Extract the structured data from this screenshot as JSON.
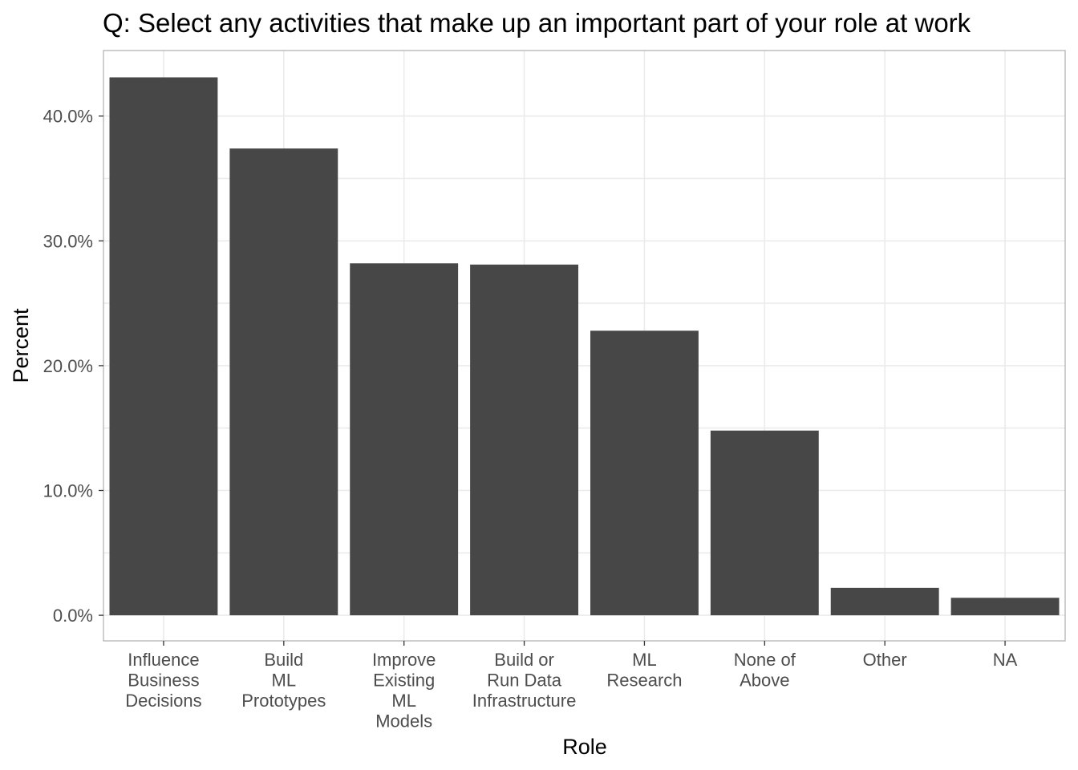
{
  "chart_data": {
    "type": "bar",
    "title": "Q: Select any activities that make up an important part of your role at work",
    "xlabel": "Role",
    "ylabel": "Percent",
    "categories": [
      [
        "Influence",
        "Business",
        "Decisions"
      ],
      [
        "Build",
        "ML",
        "Prototypes"
      ],
      [
        "Improve",
        "Existing",
        "ML",
        "Models"
      ],
      [
        "Build or",
        "Run Data",
        "Infrastructure"
      ],
      [
        "ML",
        "Research"
      ],
      [
        "None of",
        "Above"
      ],
      [
        "Other"
      ],
      [
        "NA"
      ]
    ],
    "values": [
      43.1,
      37.4,
      28.2,
      28.1,
      22.8,
      14.8,
      2.2,
      1.4
    ],
    "yticks": [
      0,
      10,
      20,
      30,
      40
    ],
    "ytick_labels": [
      "0.0%",
      "10.0%",
      "20.0%",
      "30.0%",
      "40.0%"
    ],
    "ylim": [
      -2.05,
      45.25
    ],
    "grid": true,
    "colors": {
      "bar": "#474747",
      "grid": "#ebebeb",
      "panel_border": "#b3b3b3",
      "tick_text": "#4d4d4d",
      "text": "#000000"
    }
  }
}
